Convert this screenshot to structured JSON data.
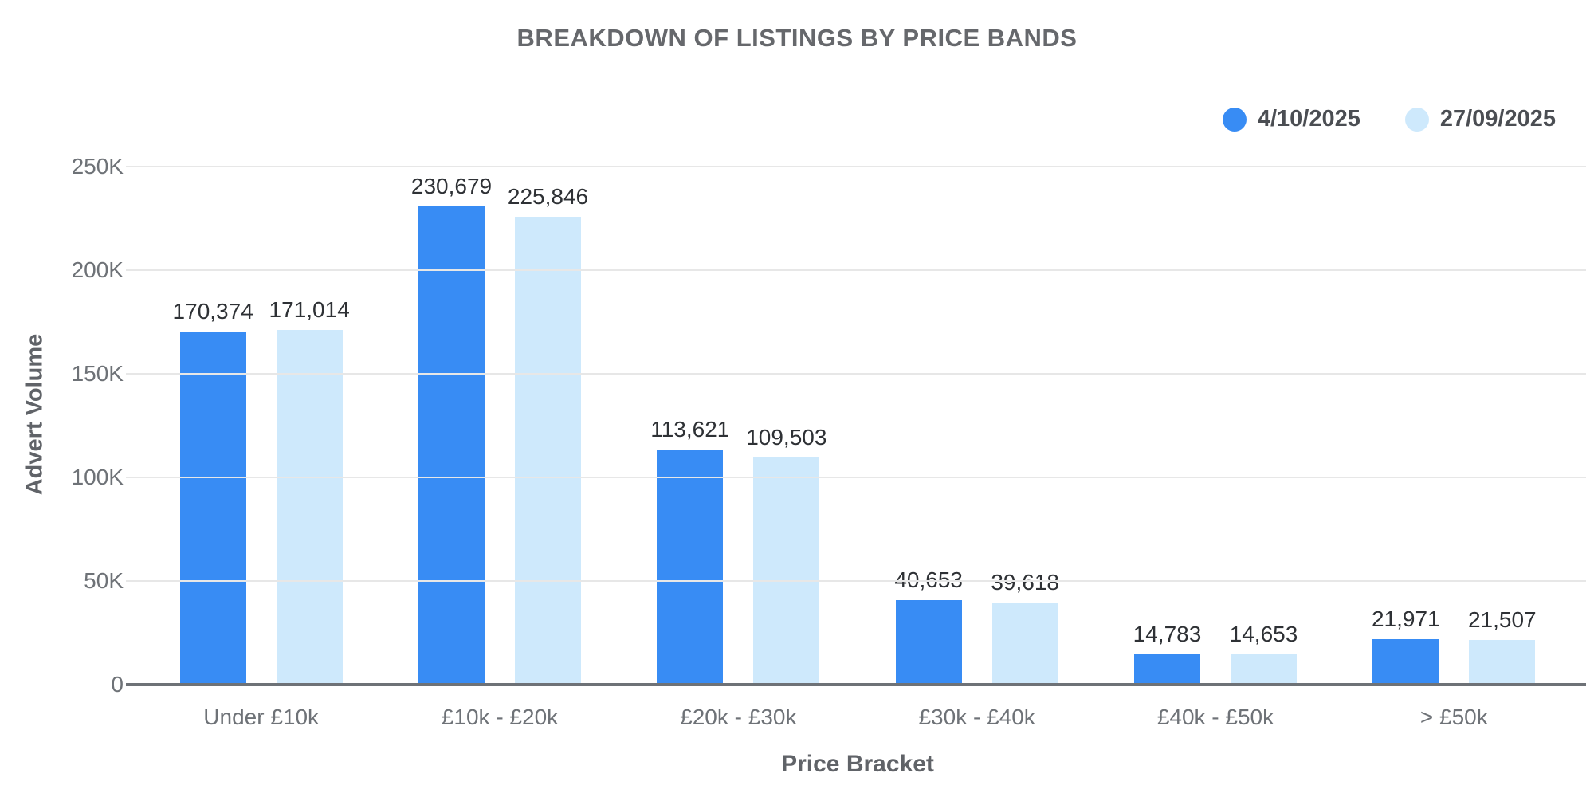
{
  "title": "BREAKDOWN OF LISTINGS BY PRICE BANDS",
  "legend": {
    "items": [
      {
        "label": "4/10/2025",
        "color": "#388cf4"
      },
      {
        "label": "27/09/2025",
        "color": "#cee9fc"
      }
    ]
  },
  "y_axis": {
    "title": "Advert Volume",
    "tick_labels": [
      "250K",
      "200K",
      "150K",
      "100K",
      "50K",
      "0"
    ]
  },
  "x_axis": {
    "title": "Price Bracket"
  },
  "chart_data": {
    "type": "bar",
    "title": "BREAKDOWN OF LISTINGS BY PRICE BANDS",
    "xlabel": "Price Bracket",
    "ylabel": "Advert Volume",
    "ylim": [
      0,
      250000
    ],
    "grid": true,
    "legend_position": "top-right",
    "categories": [
      "Under £10k",
      "£10k - £20k",
      "£20k - £30k",
      "£30k - £40k",
      "£40k - £50k",
      "> £50k"
    ],
    "series": [
      {
        "name": "4/10/2025",
        "color": "#388cf4",
        "values": [
          170374,
          230679,
          113621,
          40653,
          14783,
          21971
        ],
        "labels": [
          "170,374",
          "230,679",
          "113,621",
          "40,653",
          "14,783",
          "21,971"
        ]
      },
      {
        "name": "27/09/2025",
        "color": "#cee9fc",
        "values": [
          171014,
          225846,
          109503,
          39618,
          14653,
          21507
        ],
        "labels": [
          "171,014",
          "225,846",
          "109,503",
          "39,618",
          "14,653",
          "21,507"
        ]
      }
    ]
  }
}
